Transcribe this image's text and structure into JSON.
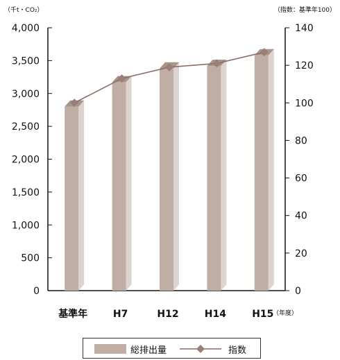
{
  "chart_data": {
    "type": "bar+line",
    "categories": [
      "基準年",
      "H7",
      "H12",
      "H14",
      "H15"
    ],
    "x_unit_label": "（年度）",
    "left_axis": {
      "unit_label": "（千t・CO₂）",
      "ylim": [
        0,
        4000
      ],
      "ticks": [
        "0",
        "500",
        "1,000",
        "1,500",
        "2,000",
        "2,500",
        "3,000",
        "3,500",
        "4,000"
      ]
    },
    "right_axis": {
      "unit_label": "（指数：基準年100）",
      "ylim": [
        0,
        140
      ],
      "ticks": [
        "0",
        "20",
        "40",
        "60",
        "80",
        "100",
        "120",
        "140"
      ]
    },
    "series": [
      {
        "name": "総排出量",
        "type": "bar",
        "axis": "left",
        "values": [
          2800,
          3170,
          3380,
          3420,
          3580
        ]
      },
      {
        "name": "指数",
        "type": "line",
        "axis": "right",
        "values": [
          100,
          113,
          119,
          121,
          127
        ]
      }
    ],
    "colors": {
      "bar_front": "#c0aea5",
      "bar_side": "#ddd4cf",
      "bar_top": "#a8958c",
      "line": "#8a6f69",
      "marker": "#9a7f78"
    }
  }
}
